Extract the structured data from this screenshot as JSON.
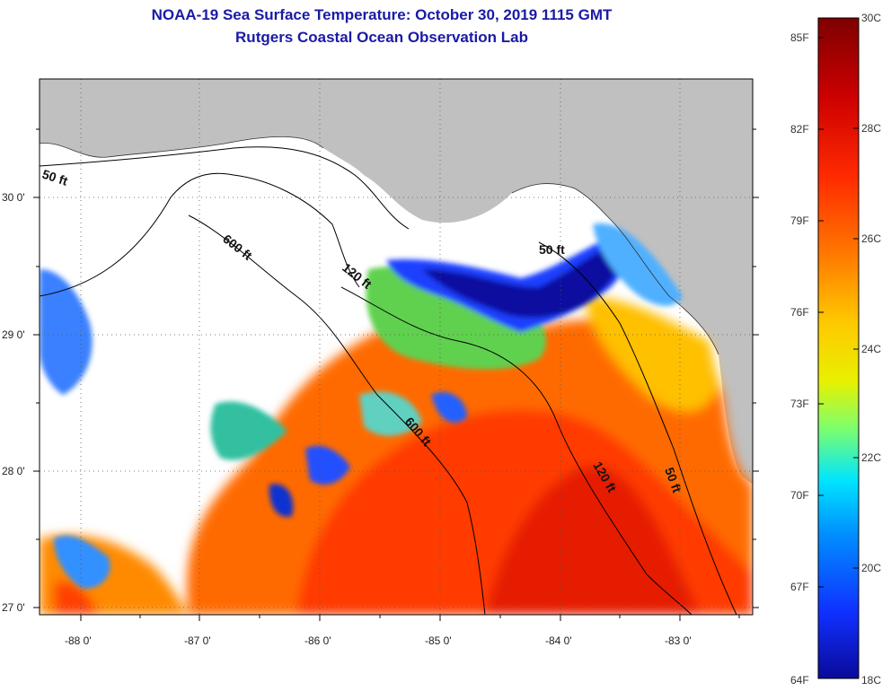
{
  "title": {
    "line1": "NOAA-19 Sea Surface Temperature:  October 30, 2019 1115 GMT",
    "line2": "Rutgers Coastal Ocean Observation Lab"
  },
  "map": {
    "lon_ticks": [
      "-88 0'",
      "-87 0'",
      "-86 0'",
      "-85 0'",
      "-84 0'",
      "-83 0'"
    ],
    "lat_ticks": [
      "30 0'",
      "29 0'",
      "28 0'",
      "27 0'"
    ],
    "isobath_labels": [
      "50 ft",
      "600 ft",
      "120 ft",
      "50 ft",
      "600 ft",
      "120 ft",
      "50 ft"
    ],
    "land_color": "#c0c0c0",
    "cloud_color": "#ffffff"
  },
  "colorbar": {
    "fahrenheit_labels": [
      "85F",
      "82F",
      "79F",
      "76F",
      "73F",
      "70F",
      "67F",
      "64F"
    ],
    "celsius_labels": [
      "30C",
      "28C",
      "26C",
      "24C",
      "22C",
      "20C",
      "18C"
    ],
    "colors": [
      "#7f0000",
      "#cc0000",
      "#ff2a00",
      "#ff7a00",
      "#ffc800",
      "#e8f000",
      "#7fff6a",
      "#00e5ff",
      "#0090ff",
      "#1030ff",
      "#0a0a9a"
    ]
  }
}
